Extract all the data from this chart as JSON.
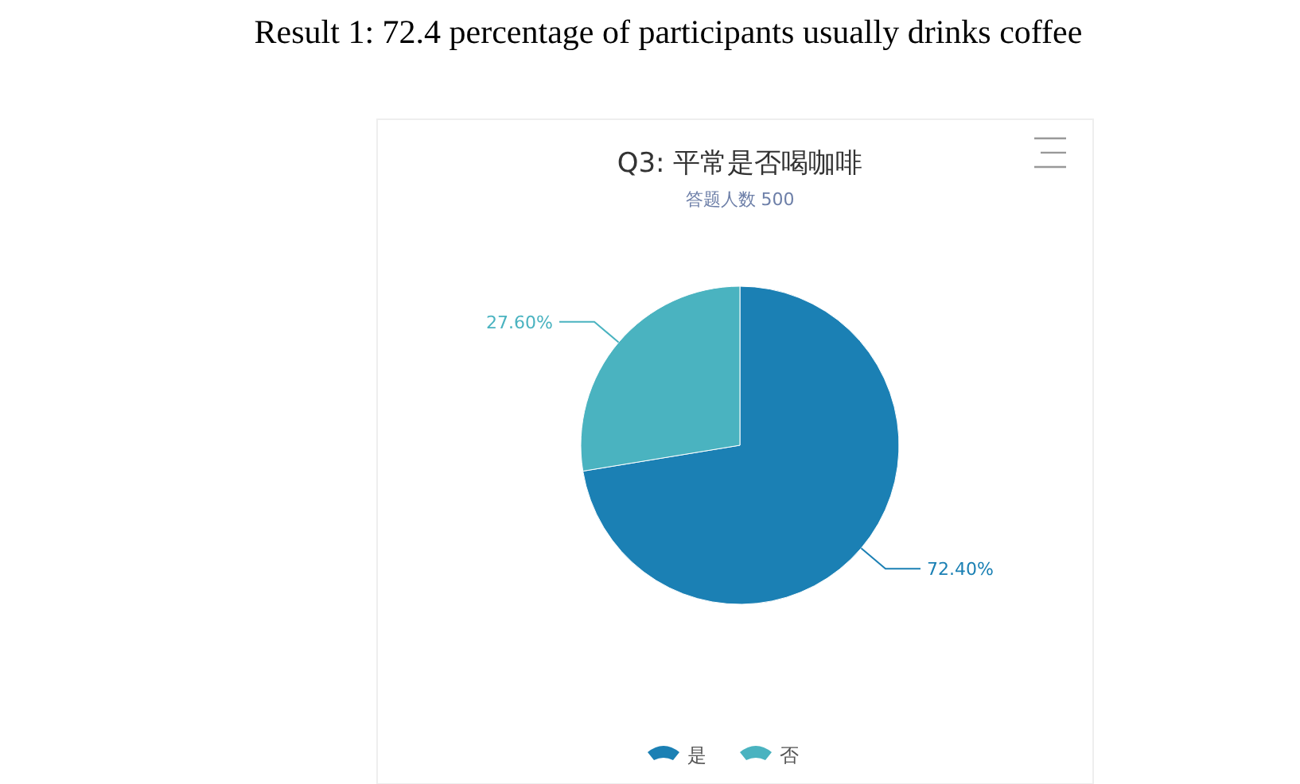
{
  "chart_data": {
    "type": "pie",
    "title": "Q3: 平常是否喝咖啡",
    "subtitle": "答题人数 500",
    "annotations": [
      "Result 1: 72.4 percentage of participants usually drinks coffee"
    ],
    "categories": [
      "是",
      "否"
    ],
    "values": [
      72.4,
      27.6
    ],
    "colors": [
      "#1b80b4",
      "#4ab3c0"
    ],
    "value_labels": [
      "72.40%",
      "27.60%"
    ],
    "legend": "bottom"
  }
}
